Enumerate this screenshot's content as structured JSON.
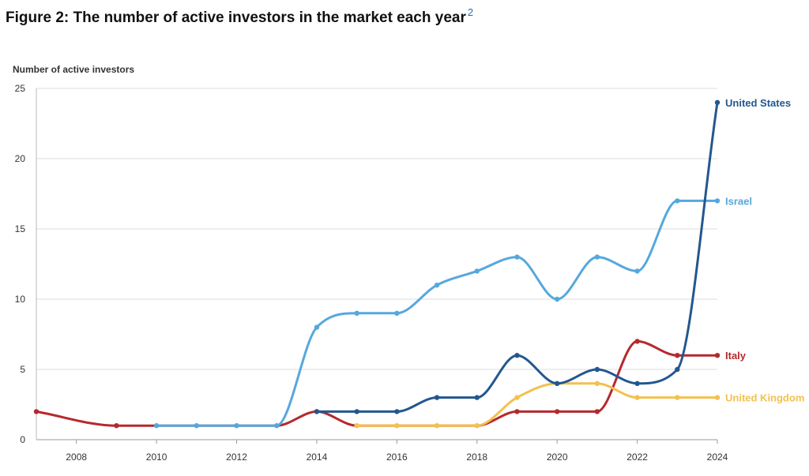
{
  "figure": {
    "title": "Figure 2: The number of active investors in the market each year",
    "footnote": "2"
  },
  "chart_data": {
    "type": "line",
    "title": "Figure 2: The number of active investors in the market each year",
    "xlabel": "",
    "ylabel": "Number of active investors",
    "xlim": [
      2007,
      2024
    ],
    "ylim": [
      0,
      25
    ],
    "xticks": [
      2008,
      2010,
      2012,
      2014,
      2016,
      2018,
      2020,
      2022,
      2024
    ],
    "yticks": [
      0,
      5,
      10,
      15,
      20,
      25
    ],
    "grid": "horizontal",
    "legend": "direct labels at line ends (right)",
    "series": [
      {
        "name": "Italy",
        "color": "#b5292e",
        "x": [
          2007,
          2009,
          2010,
          2011,
          2012,
          2013,
          2014,
          2015,
          2016,
          2017,
          2018,
          2019,
          2020,
          2021,
          2022,
          2023,
          2024
        ],
        "values": [
          2,
          1,
          1,
          1,
          1,
          1,
          2,
          1,
          1,
          1,
          1,
          2,
          2,
          2,
          7,
          6,
          6
        ],
        "markers_x": [
          2007,
          2009,
          2014,
          2019,
          2020,
          2021,
          2022,
          2023,
          2024
        ]
      },
      {
        "name": "United Kingdom",
        "color": "#f2c14e",
        "x": [
          2015,
          2016,
          2017,
          2018,
          2019,
          2020,
          2021,
          2022,
          2023,
          2024
        ],
        "values": [
          1,
          1,
          1,
          1,
          3,
          4,
          4,
          3,
          3,
          3
        ],
        "markers_x": [
          2015,
          2016,
          2017,
          2018,
          2019,
          2020,
          2021,
          2022,
          2023,
          2024
        ]
      },
      {
        "name": "Israel",
        "color": "#55a8dd",
        "x": [
          2010,
          2011,
          2012,
          2013,
          2014,
          2015,
          2016,
          2017,
          2018,
          2019,
          2020,
          2021,
          2022,
          2023,
          2024
        ],
        "values": [
          1,
          1,
          1,
          1,
          8,
          9,
          9,
          11,
          12,
          13,
          10,
          13,
          12,
          17,
          17
        ],
        "markers_x": [
          2010,
          2011,
          2012,
          2013,
          2014,
          2015,
          2016,
          2017,
          2018,
          2019,
          2020,
          2021,
          2022,
          2023,
          2024
        ]
      },
      {
        "name": "United States",
        "color": "#23578f",
        "x": [
          2014,
          2015,
          2016,
          2017,
          2018,
          2019,
          2020,
          2021,
          2022,
          2023,
          2024
        ],
        "values": [
          2,
          2,
          2,
          3,
          3,
          6,
          4,
          5,
          4,
          5,
          24
        ],
        "markers_x": [
          2014,
          2015,
          2016,
          2017,
          2018,
          2019,
          2020,
          2021,
          2022,
          2023,
          2024
        ]
      }
    ]
  }
}
